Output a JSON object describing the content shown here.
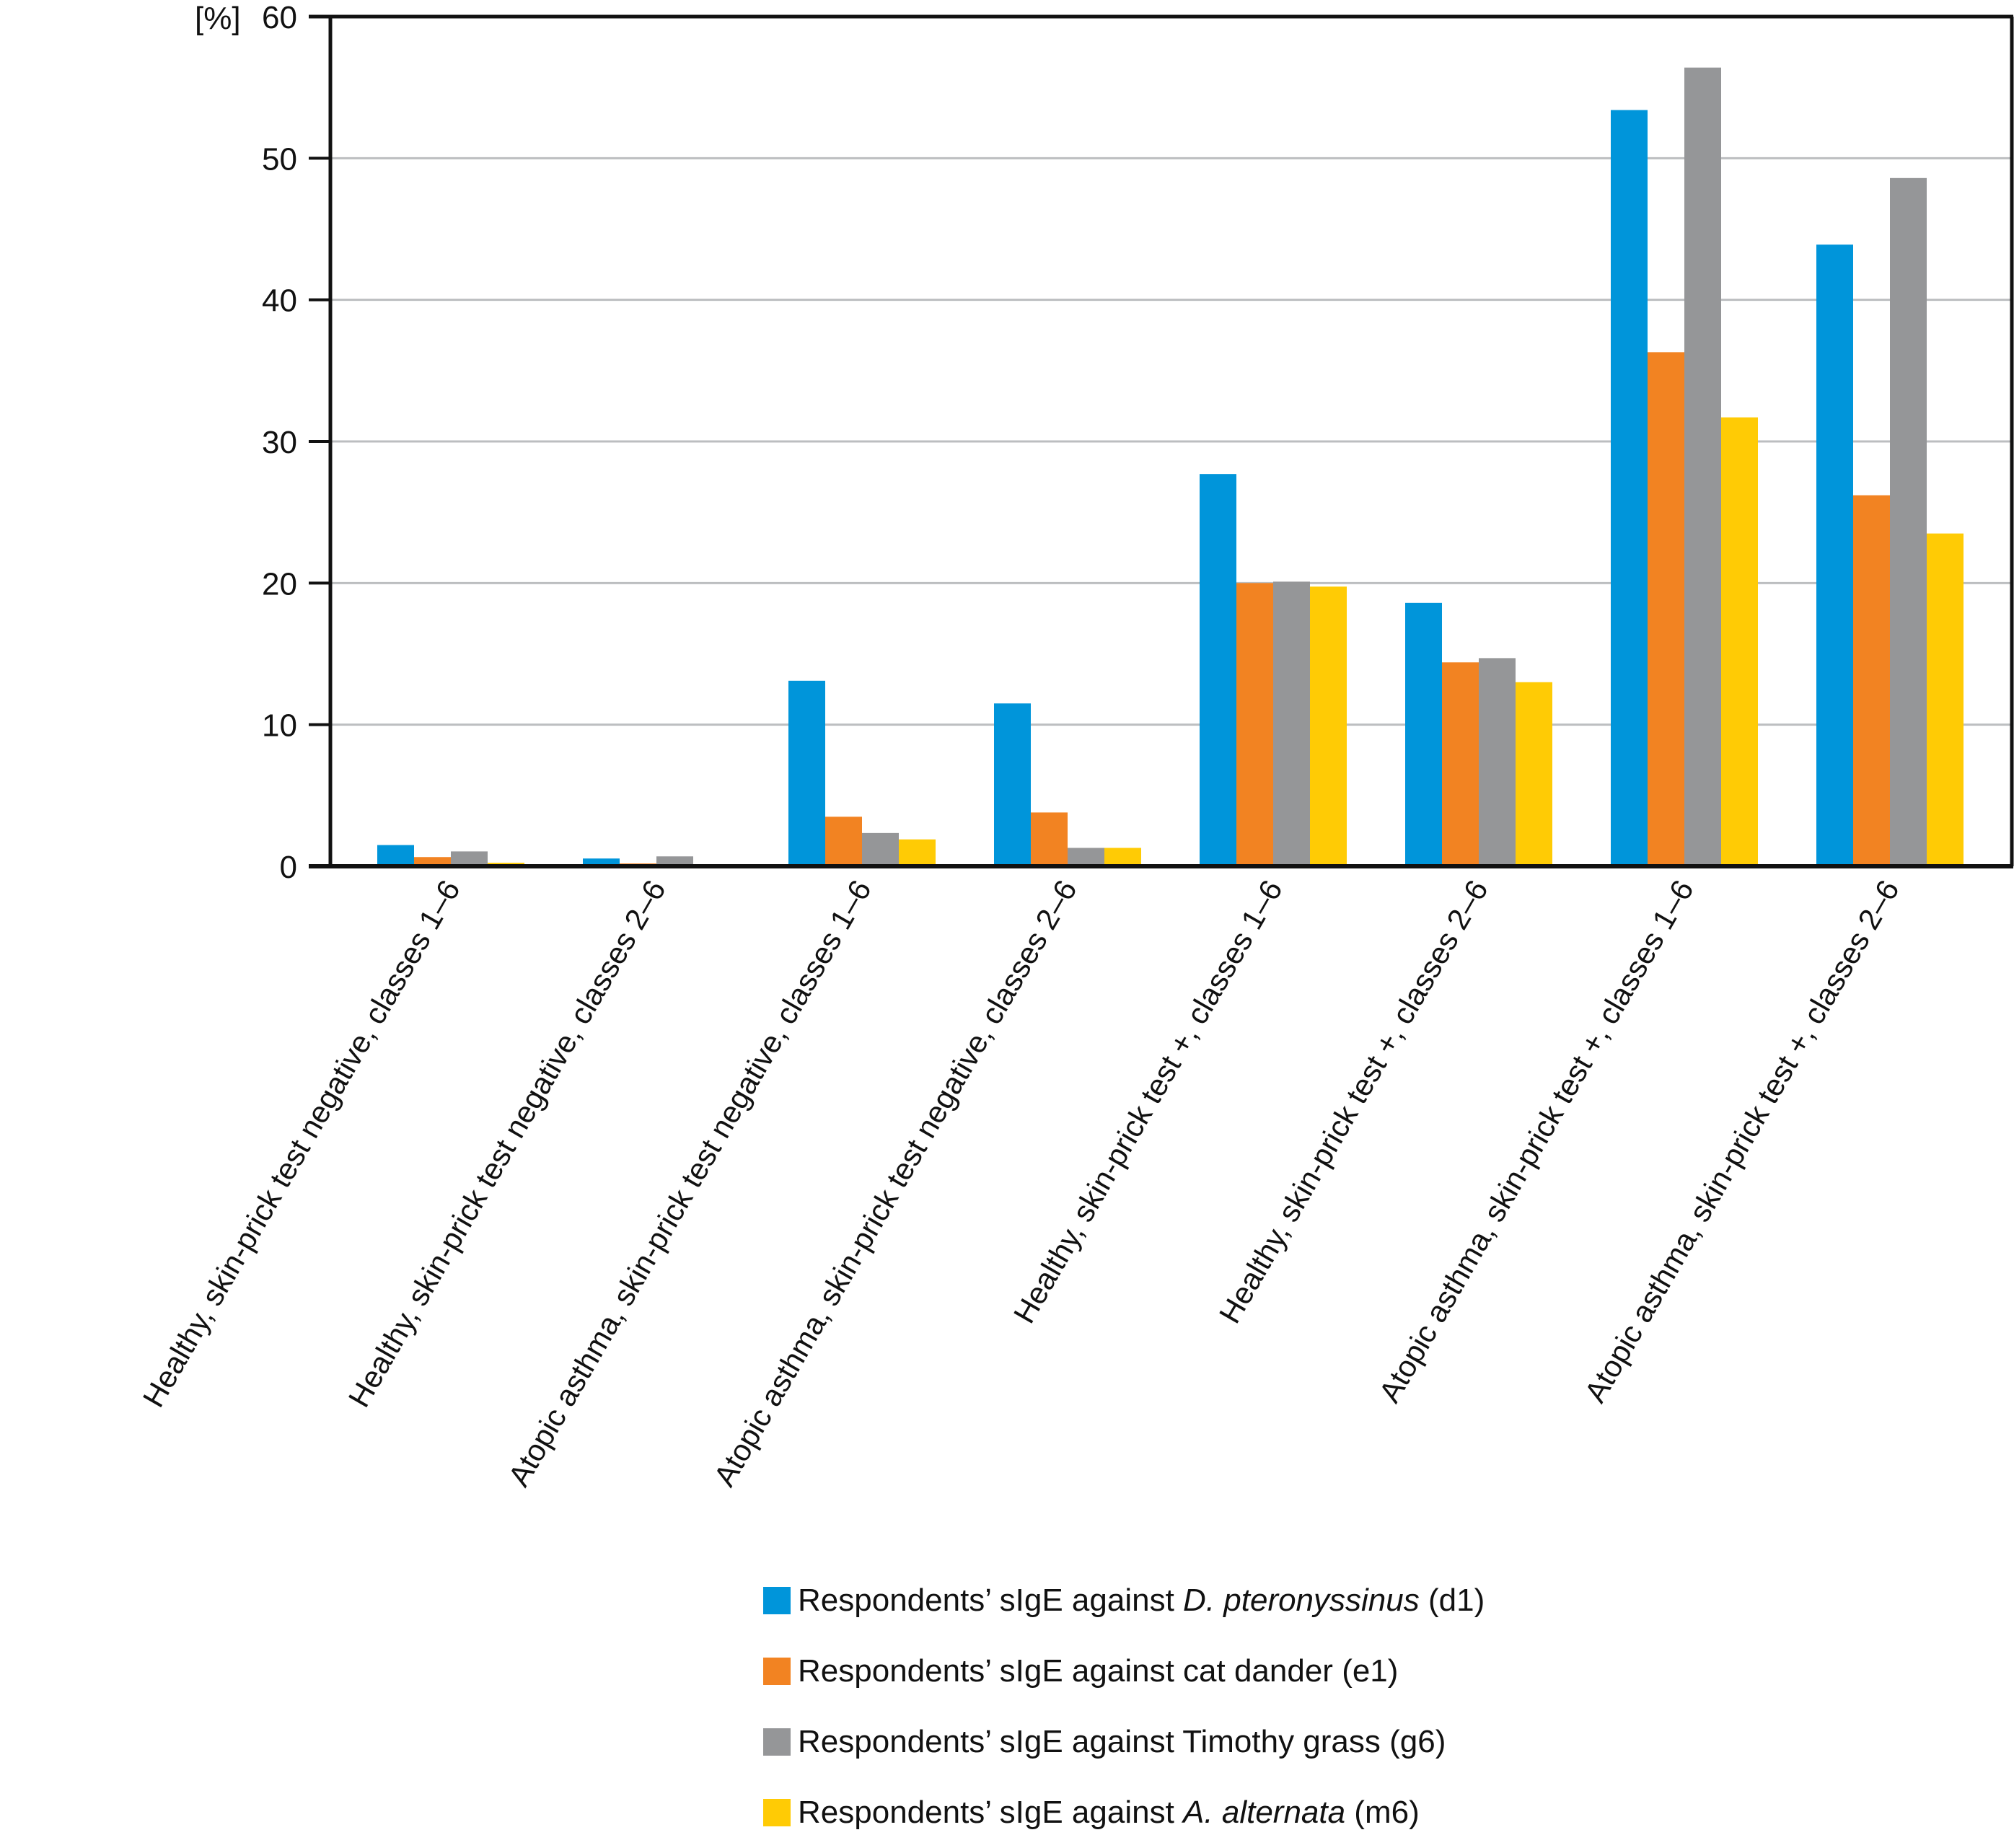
{
  "chart_data": {
    "type": "bar",
    "title": "",
    "xlabel": "",
    "ylabel": "[%]",
    "ylim": [
      0,
      60
    ],
    "yticks": [
      0,
      10,
      20,
      30,
      40,
      50,
      60
    ],
    "grid": true,
    "legend_position": "bottom-right",
    "categories": [
      "Healthy, skin-prick test negative, classes 1–6",
      "Healthy, skin-prick test negative, classes 2–6",
      "Atopic asthma, skin-prick test negative, classes 1–6",
      "Atopic asthma, skin-prick test negative, classes 2–6",
      "Healthy, skin-prick test +, classes 1–6",
      "Healthy, skin-prick test +, classes 2–6",
      "Atopic asthma, skin-prick test +, classes 1–6",
      "Atopic asthma, skin-prick test +, classes 2–6"
    ],
    "series": [
      {
        "name": "Respondents’ sIgE against D. pteronyssinus (d1)",
        "legend_parts": [
          "Respondents’ sIgE against ",
          "D. pteronyssinus",
          " (d1)"
        ],
        "color": "#0095DA",
        "values": [
          1.5,
          0.55,
          13.1,
          11.5,
          27.7,
          18.6,
          53.4,
          43.9
        ]
      },
      {
        "name": "Respondents’ sIgE against cat dander (e1)",
        "legend_parts": [
          "Respondents’ sIgE against cat dander (e1)",
          "",
          ""
        ],
        "color": "#F28322",
        "values": [
          0.65,
          0.2,
          3.5,
          3.8,
          20.0,
          14.4,
          36.3,
          26.2
        ]
      },
      {
        "name": "Respondents’ sIgE against Timothy grass (g6)",
        "legend_parts": [
          "Respondents’ sIgE against Timothy grass (g6)",
          "",
          ""
        ],
        "color": "#959698",
        "values": [
          1.05,
          0.7,
          2.35,
          1.3,
          20.1,
          14.7,
          56.4,
          48.6
        ]
      },
      {
        "name": "Respondents’ sIgE against A. alternata (m6)",
        "legend_parts": [
          "Respondents’ sIgE against ",
          "A. alternata",
          " (m6)"
        ],
        "color": "#FFCB05",
        "values": [
          0.25,
          0.1,
          1.9,
          1.3,
          19.75,
          13.0,
          31.7,
          23.5
        ]
      }
    ]
  }
}
